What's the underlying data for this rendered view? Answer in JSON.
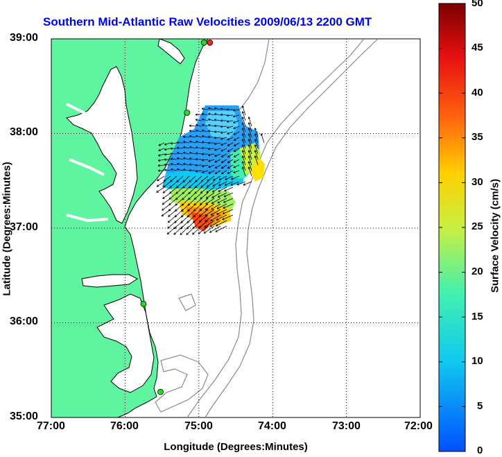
{
  "map": {
    "title": "Southern Mid-Atlantic Raw Velocities 2009/06/13 2200 GMT",
    "xlabel": "Longitude (Degrees:Minutes)",
    "ylabel": "Latitude (Degrees:Minutes)",
    "x_ticks": [
      "77:00",
      "76:00",
      "75:00",
      "74:00",
      "73:00",
      "72:00"
    ],
    "y_ticks": [
      "39:00",
      "38:00",
      "37:00",
      "36:00",
      "35:00"
    ],
    "lon_range": [
      -77,
      -72
    ],
    "lat_range": [
      35,
      39
    ],
    "colorbar": {
      "label": "Surface Velocity (cm/s)",
      "ticks": [
        "50",
        "45",
        "40",
        "35",
        "30",
        "25",
        "20",
        "15",
        "10",
        "5",
        "0"
      ],
      "range": [
        0,
        50
      ]
    },
    "colors": {
      "land": "#5ff5a0",
      "title": "#0000ee",
      "coast": "#000000",
      "bathymetry": "#8a8a8a"
    },
    "stations": [
      {
        "name": "red-station",
        "lon": -74.85,
        "lat": 38.96,
        "color": "#ff2020"
      },
      {
        "name": "green-station-1",
        "lon": -74.93,
        "lat": 38.96,
        "color": "#22dd22"
      },
      {
        "name": "green-station-2",
        "lon": -75.16,
        "lat": 38.22,
        "color": "#22dd22"
      },
      {
        "name": "green-station-3",
        "lon": -75.75,
        "lat": 36.2,
        "color": "#22dd22"
      },
      {
        "name": "green-station-4",
        "lon": -75.52,
        "lat": 35.27,
        "color": "#22dd22"
      }
    ]
  }
}
